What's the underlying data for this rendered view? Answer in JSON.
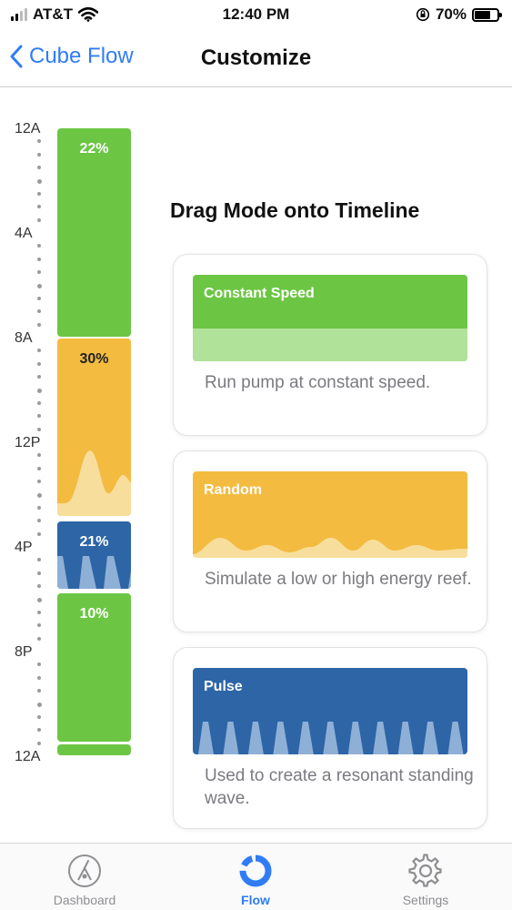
{
  "status_bar": {
    "carrier": "AT&T",
    "time": "12:40 PM",
    "battery": "70%",
    "battery_level": 0.7
  },
  "nav": {
    "back_label": "Cube Flow",
    "title": "Customize"
  },
  "timeline": {
    "time_labels": [
      "12A",
      "4A",
      "8A",
      "12P",
      "4P",
      "8P",
      "12A"
    ],
    "segments": [
      {
        "percent": "22%",
        "mode": "Constant Speed",
        "color": "#6cc644"
      },
      {
        "percent": "30%",
        "mode": "Random",
        "color": "#f3bb40"
      },
      {
        "percent": "21%",
        "mode": "Pulse",
        "color": "#2d65a6"
      },
      {
        "percent": "10%",
        "mode": "Constant Speed",
        "color": "#6cc644"
      },
      {
        "percent": "",
        "mode": "Constant Speed",
        "color": "#6cc644"
      }
    ]
  },
  "panel": {
    "title": "Drag Mode onto Timeline",
    "modes": [
      {
        "name": "Constant Speed",
        "description": "Run pump at constant speed.",
        "color": "#6cc644",
        "light": "#b0e29a"
      },
      {
        "name": "Random",
        "description": "Simulate a low or high energy reef.",
        "color": "#f3bb40",
        "light": "#f8de9c"
      },
      {
        "name": "Pulse",
        "description": "Used to create a resonant standing wave.",
        "color": "#2d65a6",
        "light": "#8fb0d6"
      }
    ]
  },
  "tab_bar": {
    "tabs": [
      {
        "label": "Dashboard",
        "icon": "gauge-icon",
        "active": false
      },
      {
        "label": "Flow",
        "icon": "donut-chart-icon",
        "active": true
      },
      {
        "label": "Settings",
        "icon": "gear-icon",
        "active": false
      }
    ]
  }
}
